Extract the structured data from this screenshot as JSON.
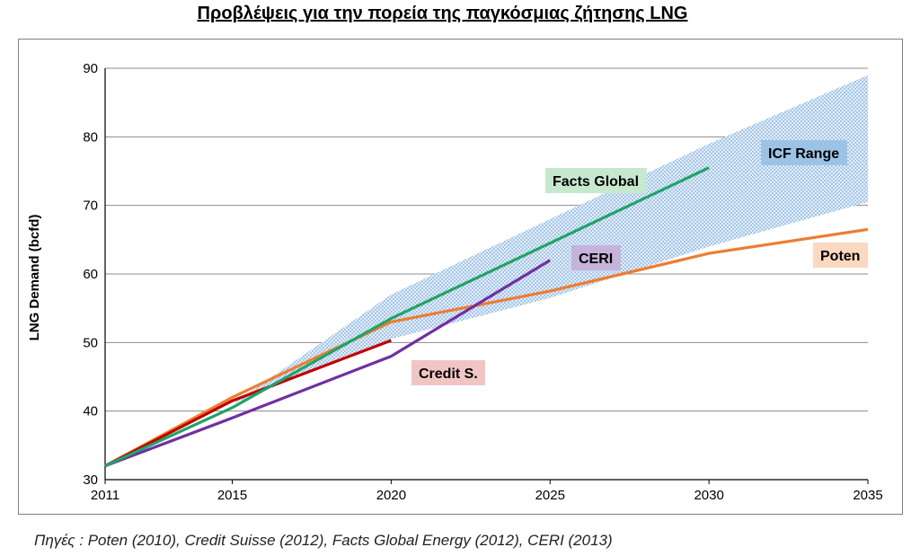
{
  "title": "Προβλέψεις για την πορεία της παγκόσμιας ζήτησης LNG",
  "source": "Πηγές :  Poten (2010), Credit Suisse (2012), Facts Global Energy (2012), CERI (2013)",
  "chart_data": {
    "type": "line",
    "ylabel": "LNG Demand (bcfd)",
    "xlabel": "",
    "xlim": [
      2011,
      2035
    ],
    "ylim": [
      30,
      90
    ],
    "x_ticks": [
      2011,
      2015,
      2020,
      2025,
      2030,
      2035
    ],
    "y_ticks": [
      30,
      40,
      50,
      60,
      70,
      80,
      90
    ],
    "grid": "horizontal",
    "band": {
      "name": "ICF Range",
      "color": "#b9d3ef",
      "label_bg": "#9cc3e6",
      "upper": [
        [
          2011,
          32
        ],
        [
          2015,
          41
        ],
        [
          2020,
          57
        ],
        [
          2025,
          68
        ],
        [
          2030,
          79
        ],
        [
          2035,
          89
        ]
      ],
      "lower": [
        [
          2011,
          32
        ],
        [
          2015,
          41
        ],
        [
          2020,
          50.5
        ],
        [
          2025,
          56.5
        ],
        [
          2030,
          64
        ],
        [
          2035,
          70.5
        ]
      ]
    },
    "series": [
      {
        "name": "Facts Global",
        "color": "#21a366",
        "label_bg": "#c6e8cf",
        "points": [
          [
            2011,
            32
          ],
          [
            2015,
            40.5
          ],
          [
            2020,
            53.5
          ],
          [
            2025,
            64.5
          ],
          [
            2030,
            75.5
          ]
        ]
      },
      {
        "name": "CERI",
        "color": "#7030a0",
        "label_bg": "#c6b3db",
        "points": [
          [
            2011,
            32
          ],
          [
            2015,
            39
          ],
          [
            2020,
            48
          ],
          [
            2025,
            62
          ]
        ]
      },
      {
        "name": "Credit S.",
        "color": "#c00000",
        "label_bg": "#f2c5c5",
        "points": [
          [
            2011,
            32
          ],
          [
            2015,
            41.5
          ],
          [
            2020,
            50.3
          ]
        ]
      },
      {
        "name": "Poten",
        "color": "#ed7d31",
        "label_bg": "#fbd8c0",
        "points": [
          [
            2011,
            32
          ],
          [
            2015,
            42
          ],
          [
            2020,
            53
          ],
          [
            2025,
            57.5
          ],
          [
            2030,
            63
          ],
          [
            2035,
            66.5
          ]
        ]
      }
    ]
  }
}
